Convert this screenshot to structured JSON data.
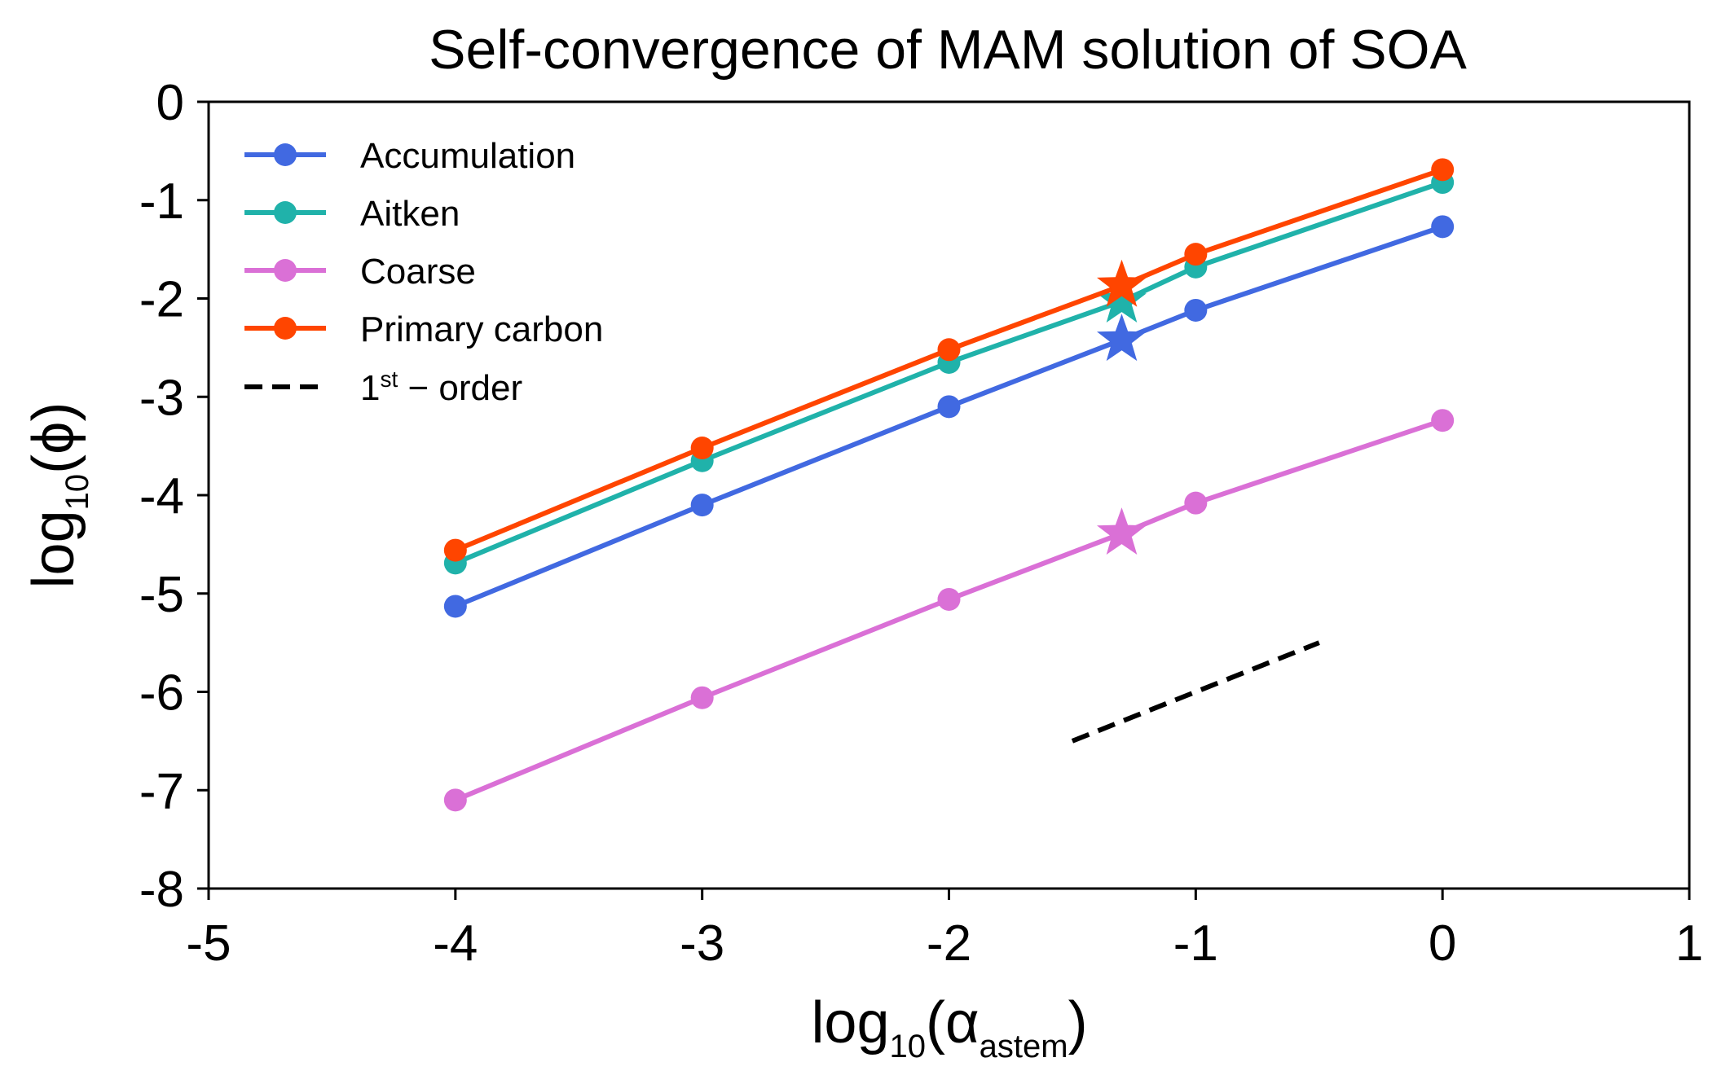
{
  "chart_data": {
    "type": "line",
    "title": "Self-convergence of MAM solution of SOA",
    "xlabel": {
      "main": "log",
      "base": "10",
      "open": "(α",
      "sub": "astem",
      "close": ")"
    },
    "ylabel": {
      "main": "log",
      "base": "10",
      "rest": "(ϕ)"
    },
    "xlim": [
      -5,
      1
    ],
    "ylim": [
      -8,
      0
    ],
    "xticks": [
      -5,
      -4,
      -3,
      -2,
      -1,
      0,
      1
    ],
    "yticks": [
      0,
      -1,
      -2,
      -3,
      -4,
      -5,
      -6,
      -7,
      -8
    ],
    "xtick_labels": [
      "-5",
      "-4",
      "-3",
      "-2",
      "-1",
      "0",
      "1"
    ],
    "ytick_labels": [
      "0",
      "-1",
      "-2",
      "-3",
      "-4",
      "-5",
      "-6",
      "-7",
      "-8"
    ],
    "x": [
      -4,
      -3,
      -2,
      -1.3,
      -1,
      0
    ],
    "marker_types": [
      "circle",
      "circle",
      "circle",
      "star",
      "circle",
      "circle"
    ],
    "series": [
      {
        "name": "Accumulation",
        "color": "#4169E1",
        "values": [
          -5.13,
          -4.1,
          -3.1,
          -2.42,
          -2.12,
          -1.27
        ]
      },
      {
        "name": "Aitken",
        "color": "#20B2AA",
        "values": [
          -4.69,
          -3.65,
          -2.65,
          -2.03,
          -1.68,
          -0.82
        ]
      },
      {
        "name": "Coarse",
        "color": "#DA70D6",
        "values": [
          -7.1,
          -6.06,
          -5.06,
          -4.39,
          -4.08,
          -3.24
        ]
      },
      {
        "name": "Primary carbon",
        "color": "#FF4500",
        "values": [
          -4.56,
          -3.52,
          -2.52,
          -1.87,
          -1.55,
          -0.69
        ]
      }
    ],
    "reference_line": {
      "name_main": "1",
      "name_sup": "st",
      "name_rest": " − order",
      "style": "dashed",
      "color": "#000000",
      "x": [
        -1.5,
        -0.5
      ],
      "y": [
        -6.5,
        -5.5
      ]
    },
    "legend_position": "upper-left",
    "grid": false
  }
}
